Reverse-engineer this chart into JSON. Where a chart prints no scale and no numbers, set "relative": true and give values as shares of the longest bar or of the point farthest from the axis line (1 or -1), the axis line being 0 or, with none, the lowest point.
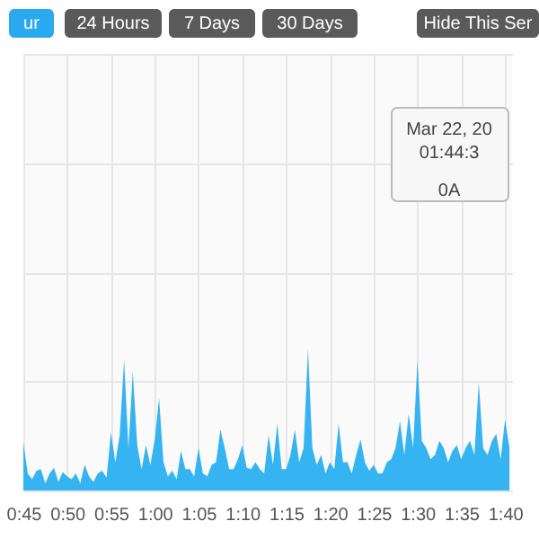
{
  "chart_data": {
    "type": "area",
    "relative": true,
    "grid": true,
    "tick_labels": "x",
    "annotations": [
      "ur",
      "24 Hours",
      "7 Days",
      "30 Days",
      "Hide This Ser",
      "Mar 22, 20",
      "01:44:3",
      "0A"
    ],
    "xlim": [
      0.75,
      1.68
    ],
    "xticks": [
      {
        "value": 0.75,
        "label": "0:45"
      },
      {
        "value": 0.8333,
        "label": "0:50"
      },
      {
        "value": 0.9167,
        "label": "0:55"
      },
      {
        "value": 1.0,
        "label": "1:00"
      },
      {
        "value": 1.0833,
        "label": "1:05"
      },
      {
        "value": 1.1667,
        "label": "1:10"
      },
      {
        "value": 1.25,
        "label": "1:15"
      },
      {
        "value": 1.3333,
        "label": "1:20"
      },
      {
        "value": 1.4167,
        "label": "1:25"
      },
      {
        "value": 1.5,
        "label": "1:30"
      },
      {
        "value": 1.5833,
        "label": "1:35"
      },
      {
        "value": 1.6667,
        "label": "1:40"
      }
    ],
    "x": [
      0.75,
      0.7583,
      0.7667,
      0.775,
      0.7833,
      0.7917,
      0.8,
      0.8083,
      0.8167,
      0.825,
      0.8333,
      0.8417,
      0.85,
      0.8583,
      0.8667,
      0.875,
      0.8833,
      0.8917,
      0.9,
      0.9083,
      0.9167,
      0.925,
      0.9333,
      0.9417,
      0.95,
      0.9583,
      0.9667,
      0.975,
      0.9833,
      0.9917,
      1.0,
      1.0083,
      1.0167,
      1.025,
      1.0333,
      1.0417,
      1.05,
      1.0583,
      1.0667,
      1.075,
      1.0833,
      1.0917,
      1.1,
      1.1083,
      1.1167,
      1.125,
      1.1333,
      1.1417,
      1.15,
      1.1583,
      1.1667,
      1.175,
      1.1833,
      1.1917,
      1.2,
      1.2083,
      1.2167,
      1.225,
      1.2333,
      1.2417,
      1.25,
      1.2583,
      1.2667,
      1.275,
      1.2833,
      1.2917,
      1.3,
      1.3083,
      1.3167,
      1.325,
      1.3333,
      1.3417,
      1.35,
      1.3583,
      1.3667,
      1.375,
      1.3833,
      1.3917,
      1.4,
      1.4083,
      1.4167,
      1.425,
      1.4333,
      1.4417,
      1.45,
      1.4583,
      1.4667,
      1.475,
      1.4833,
      1.4917,
      1.5,
      1.5083,
      1.5167,
      1.525,
      1.5333,
      1.5417,
      1.55,
      1.5583,
      1.5667,
      1.575,
      1.5833,
      1.5917,
      1.6,
      1.6083,
      1.6167,
      1.625,
      1.6333,
      1.6417,
      1.65,
      1.6583,
      1.6667,
      1.675
    ],
    "series": [
      {
        "color": "#36b4f2",
        "values": [
          0.34,
          0.12,
          0.08,
          0.14,
          0.15,
          0.05,
          0.12,
          0.16,
          0.06,
          0.13,
          0.1,
          0.08,
          0.12,
          0.05,
          0.18,
          0.1,
          0.06,
          0.12,
          0.14,
          0.09,
          0.41,
          0.2,
          0.39,
          0.92,
          0.3,
          0.84,
          0.32,
          0.15,
          0.32,
          0.18,
          0.36,
          0.65,
          0.2,
          0.1,
          0.14,
          0.08,
          0.28,
          0.15,
          0.15,
          0.1,
          0.3,
          0.12,
          0.1,
          0.18,
          0.2,
          0.43,
          0.3,
          0.15,
          0.15,
          0.22,
          0.32,
          0.16,
          0.15,
          0.2,
          0.15,
          0.12,
          0.39,
          0.18,
          0.47,
          0.15,
          0.15,
          0.25,
          0.43,
          0.2,
          0.3,
          1.0,
          0.3,
          0.18,
          0.25,
          0.12,
          0.2,
          0.15,
          0.47,
          0.2,
          0.2,
          0.12,
          0.25,
          0.36,
          0.2,
          0.14,
          0.18,
          0.12,
          0.12,
          0.2,
          0.22,
          0.3,
          0.49,
          0.25,
          0.54,
          0.3,
          0.92,
          0.35,
          0.3,
          0.22,
          0.25,
          0.35,
          0.3,
          0.2,
          0.28,
          0.32,
          0.22,
          0.3,
          0.35,
          0.25,
          0.76,
          0.3,
          0.25,
          0.35,
          0.4,
          0.22,
          0.5,
          0.3
        ]
      }
    ]
  }
}
